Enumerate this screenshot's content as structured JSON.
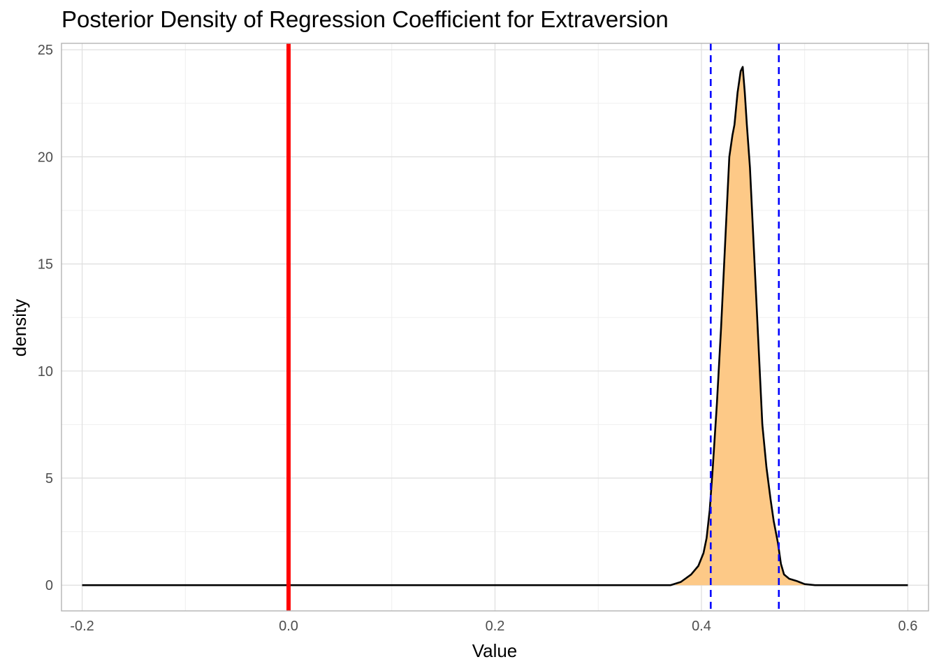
{
  "chart_data": {
    "type": "area",
    "title": "Posterior Density of Regression Coefficient for Extraversion",
    "xlabel": "Value",
    "ylabel": "density",
    "xlim": [
      -0.22,
      0.62
    ],
    "ylim": [
      -1.2,
      25.3
    ],
    "x_ticks": [
      -0.2,
      0.0,
      0.2,
      0.4,
      0.6
    ],
    "x_tick_labels": [
      "-0.2",
      "0.0",
      "0.2",
      "0.4",
      "0.6"
    ],
    "y_ticks": [
      0,
      5,
      10,
      15,
      20,
      25
    ],
    "y_tick_labels": [
      "0",
      "5",
      "10",
      "15",
      "20",
      "25"
    ],
    "grid": true,
    "density_curve": {
      "x": [
        -0.2,
        0.1,
        0.37,
        0.38,
        0.39,
        0.397,
        0.402,
        0.405,
        0.408,
        0.411,
        0.415,
        0.419,
        0.423,
        0.427,
        0.43,
        0.432,
        0.435,
        0.438,
        0.44,
        0.442,
        0.444,
        0.447,
        0.451,
        0.455,
        0.459,
        0.463,
        0.467,
        0.47,
        0.474,
        0.477,
        0.48,
        0.485,
        0.492,
        0.5,
        0.51,
        0.55,
        0.6
      ],
      "y": [
        0,
        0,
        0,
        0.15,
        0.5,
        0.9,
        1.5,
        2.2,
        3.5,
        5.5,
        8.5,
        12.0,
        16.0,
        20.0,
        21.0,
        21.5,
        23.0,
        24.0,
        24.2,
        23.0,
        21.5,
        19.5,
        15.5,
        11.5,
        7.5,
        5.5,
        4.0,
        3.0,
        2.0,
        1.0,
        0.5,
        0.3,
        0.2,
        0.05,
        0,
        0,
        0
      ]
    },
    "credible_interval": [
      0.409,
      0.475
    ],
    "reference_line_x": 0.0,
    "colors": {
      "fill": "#fdc987",
      "curve": "#000000",
      "interval_lines": "#0000ff",
      "reference_line": "#ff0000",
      "grid_major": "#dedede",
      "grid_minor": "#efefef",
      "panel_border": "#b3b3b3"
    }
  }
}
